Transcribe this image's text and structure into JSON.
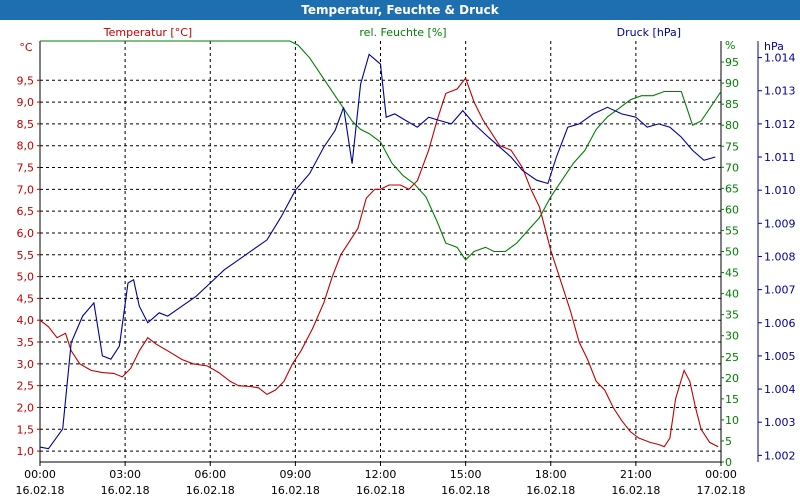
{
  "window": {
    "title": "Temperatur, Feuchte & Druck"
  },
  "colors": {
    "temperature": "#c00000",
    "humidity": "#008000",
    "pressure": "#000099",
    "titlebar": "#1e6fb0"
  },
  "chart_data": {
    "type": "line",
    "title": "Temperatur, Feuchte & Druck",
    "grid": true,
    "x_ticks": [
      {
        "time": "00:00",
        "date": "16.02.18"
      },
      {
        "time": "03:00",
        "date": "16.02.18"
      },
      {
        "time": "06:00",
        "date": "16.02.18"
      },
      {
        "time": "09:00",
        "date": "16.02.18"
      },
      {
        "time": "12:00",
        "date": "16.02.18"
      },
      {
        "time": "15:00",
        "date": "16.02.18"
      },
      {
        "time": "18:00",
        "date": "16.02.18"
      },
      {
        "time": "21:00",
        "date": "16.02.18"
      },
      {
        "time": "00:00",
        "date": "17.02.18"
      }
    ],
    "x_range_hours": [
      0,
      24
    ],
    "axes": {
      "temperature": {
        "unit": "°C",
        "ylim": [
          0.75,
          10.4
        ],
        "ticks": [
          "1,0",
          "1,5",
          "2,0",
          "2,5",
          "3,0",
          "3,5",
          "4,0",
          "4,5",
          "5,0",
          "5,5",
          "6,0",
          "6,5",
          "7,0",
          "7,5",
          "8,0",
          "8,5",
          "9,0",
          "9,5"
        ]
      },
      "humidity": {
        "unit": "%",
        "ylim": [
          0,
          100
        ],
        "ticks": [
          "0",
          "5",
          "10",
          "15",
          "20",
          "25",
          "30",
          "35",
          "40",
          "45",
          "50",
          "55",
          "60",
          "65",
          "70",
          "75",
          "80",
          "85",
          "90",
          "95",
          "%"
        ]
      },
      "pressure": {
        "unit": "hPa",
        "ylim": [
          1001.8,
          1014.5
        ],
        "ticks": [
          "1.002",
          "1.003",
          "1.004",
          "1.005",
          "1.006",
          "1.007",
          "1.008",
          "1.009",
          "1.010",
          "1.011",
          "1.012",
          "1.013",
          "1.014"
        ]
      }
    },
    "series": [
      {
        "name": "Temperatur [°C]",
        "axis": "temperature",
        "points": [
          [
            0,
            4.0
          ],
          [
            0.3,
            3.85
          ],
          [
            0.6,
            3.6
          ],
          [
            0.9,
            3.7
          ],
          [
            1.1,
            3.3
          ],
          [
            1.4,
            3.0
          ],
          [
            1.8,
            2.85
          ],
          [
            2.2,
            2.8
          ],
          [
            2.6,
            2.78
          ],
          [
            2.9,
            2.7
          ],
          [
            3.2,
            2.9
          ],
          [
            3.5,
            3.3
          ],
          [
            3.8,
            3.6
          ],
          [
            4.1,
            3.45
          ],
          [
            4.5,
            3.3
          ],
          [
            5.0,
            3.1
          ],
          [
            5.4,
            3.0
          ],
          [
            5.9,
            2.95
          ],
          [
            6.3,
            2.8
          ],
          [
            6.7,
            2.6
          ],
          [
            7.0,
            2.5
          ],
          [
            7.4,
            2.48
          ],
          [
            7.7,
            2.45
          ],
          [
            8.0,
            2.3
          ],
          [
            8.3,
            2.4
          ],
          [
            8.6,
            2.6
          ],
          [
            8.9,
            3.0
          ],
          [
            9.2,
            3.3
          ],
          [
            9.6,
            3.8
          ],
          [
            10.0,
            4.4
          ],
          [
            10.3,
            5.0
          ],
          [
            10.6,
            5.5
          ],
          [
            10.9,
            5.8
          ],
          [
            11.2,
            6.1
          ],
          [
            11.5,
            6.8
          ],
          [
            11.8,
            7.0
          ],
          [
            12.0,
            7.0
          ],
          [
            12.3,
            7.1
          ],
          [
            12.7,
            7.1
          ],
          [
            13.0,
            7.0
          ],
          [
            13.3,
            7.2
          ],
          [
            13.7,
            7.9
          ],
          [
            14.0,
            8.6
          ],
          [
            14.3,
            9.2
          ],
          [
            14.7,
            9.3
          ],
          [
            15.0,
            9.55
          ],
          [
            15.3,
            9.0
          ],
          [
            15.6,
            8.6
          ],
          [
            15.9,
            8.3
          ],
          [
            16.2,
            8.0
          ],
          [
            16.6,
            7.9
          ],
          [
            17.0,
            7.5
          ],
          [
            17.3,
            7.0
          ],
          [
            17.6,
            6.6
          ],
          [
            18.0,
            5.6
          ],
          [
            18.3,
            5.0
          ],
          [
            18.7,
            4.2
          ],
          [
            19.0,
            3.5
          ],
          [
            19.3,
            3.1
          ],
          [
            19.6,
            2.6
          ],
          [
            19.9,
            2.4
          ],
          [
            20.2,
            2.0
          ],
          [
            20.5,
            1.7
          ],
          [
            20.8,
            1.45
          ],
          [
            21.1,
            1.3
          ],
          [
            21.5,
            1.2
          ],
          [
            21.8,
            1.15
          ],
          [
            22.0,
            1.1
          ],
          [
            22.2,
            1.3
          ],
          [
            22.4,
            2.2
          ],
          [
            22.7,
            2.85
          ],
          [
            22.9,
            2.6
          ],
          [
            23.1,
            2.0
          ],
          [
            23.3,
            1.5
          ],
          [
            23.6,
            1.2
          ],
          [
            23.9,
            1.1
          ]
        ]
      },
      {
        "name": "rel. Feuchte [%]",
        "axis": "humidity",
        "points": [
          [
            0,
            100
          ],
          [
            8.8,
            100
          ],
          [
            9.1,
            99
          ],
          [
            9.5,
            96
          ],
          [
            10.0,
            91
          ],
          [
            10.5,
            86
          ],
          [
            11.0,
            81
          ],
          [
            11.3,
            79
          ],
          [
            11.6,
            78
          ],
          [
            12.0,
            76
          ],
          [
            12.4,
            71
          ],
          [
            12.8,
            68
          ],
          [
            13.2,
            66
          ],
          [
            13.6,
            63
          ],
          [
            14.0,
            57
          ],
          [
            14.3,
            52
          ],
          [
            14.7,
            51
          ],
          [
            15.0,
            48
          ],
          [
            15.3,
            50
          ],
          [
            15.7,
            51
          ],
          [
            16.0,
            50
          ],
          [
            16.4,
            50
          ],
          [
            16.8,
            52
          ],
          [
            17.2,
            55
          ],
          [
            17.6,
            58
          ],
          [
            18.0,
            63
          ],
          [
            18.4,
            67
          ],
          [
            18.8,
            71
          ],
          [
            19.2,
            74
          ],
          [
            19.6,
            79
          ],
          [
            20.0,
            82
          ],
          [
            20.4,
            84
          ],
          [
            20.8,
            86
          ],
          [
            21.2,
            87
          ],
          [
            21.6,
            87
          ],
          [
            22.0,
            88
          ],
          [
            22.3,
            88
          ],
          [
            22.6,
            88
          ],
          [
            22.8,
            84
          ],
          [
            23.0,
            80
          ],
          [
            23.3,
            81
          ],
          [
            23.6,
            84
          ],
          [
            24.0,
            88
          ]
        ]
      },
      {
        "name": "Druck [hPa]",
        "axis": "pressure",
        "points": [
          [
            0,
            1002.25
          ],
          [
            0.3,
            1002.2
          ],
          [
            0.8,
            1002.8
          ],
          [
            1.1,
            1005.4
          ],
          [
            1.5,
            1006.2
          ],
          [
            1.9,
            1006.6
          ],
          [
            2.2,
            1005.0
          ],
          [
            2.5,
            1004.9
          ],
          [
            2.8,
            1005.3
          ],
          [
            3.1,
            1007.2
          ],
          [
            3.3,
            1007.3
          ],
          [
            3.5,
            1006.5
          ],
          [
            3.8,
            1006.0
          ],
          [
            4.2,
            1006.3
          ],
          [
            4.5,
            1006.2
          ],
          [
            5.0,
            1006.5
          ],
          [
            5.5,
            1006.8
          ],
          [
            6.0,
            1007.2
          ],
          [
            6.5,
            1007.6
          ],
          [
            7.0,
            1007.9
          ],
          [
            7.5,
            1008.2
          ],
          [
            8.0,
            1008.5
          ],
          [
            8.5,
            1009.2
          ],
          [
            9.0,
            1010.0
          ],
          [
            9.5,
            1010.5
          ],
          [
            10.0,
            1011.3
          ],
          [
            10.4,
            1011.8
          ],
          [
            10.7,
            1012.5
          ],
          [
            11.0,
            1010.8
          ],
          [
            11.3,
            1013.2
          ],
          [
            11.6,
            1014.1
          ],
          [
            12.0,
            1013.8
          ],
          [
            12.2,
            1012.2
          ],
          [
            12.5,
            1012.3
          ],
          [
            12.9,
            1012.1
          ],
          [
            13.3,
            1011.9
          ],
          [
            13.7,
            1012.2
          ],
          [
            14.1,
            1012.1
          ],
          [
            14.5,
            1012.0
          ],
          [
            14.9,
            1012.4
          ],
          [
            15.3,
            1012.0
          ],
          [
            15.8,
            1011.6
          ],
          [
            16.2,
            1011.3
          ],
          [
            16.6,
            1011.0
          ],
          [
            17.0,
            1010.6
          ],
          [
            17.5,
            1010.3
          ],
          [
            17.9,
            1010.2
          ],
          [
            18.2,
            1011.0
          ],
          [
            18.6,
            1011.9
          ],
          [
            19.0,
            1012.0
          ],
          [
            19.5,
            1012.3
          ],
          [
            20.0,
            1012.5
          ],
          [
            20.5,
            1012.3
          ],
          [
            21.0,
            1012.2
          ],
          [
            21.4,
            1011.9
          ],
          [
            21.8,
            1012.0
          ],
          [
            22.2,
            1011.9
          ],
          [
            22.6,
            1011.6
          ],
          [
            23.0,
            1011.2
          ],
          [
            23.4,
            1010.9
          ],
          [
            23.8,
            1011.0
          ]
        ]
      }
    ]
  }
}
